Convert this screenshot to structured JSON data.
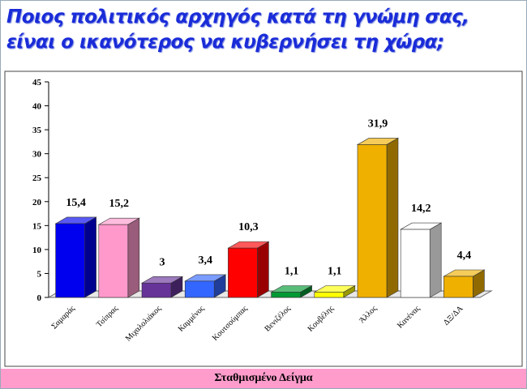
{
  "chart_data": {
    "type": "bar3d",
    "title": "Ποιος πολιτικός αρχηγός κατά τη γνώμη σας, είναι ο ικανότερος να κυβερνήσει τη χώρα;",
    "categories": [
      "Σαμαράς",
      "Τσίπρας",
      "Μιχαλολιάκος",
      "Καμμένος",
      "Κουτσούμπας",
      "Βενιζέλος",
      "Κουβέλης",
      "Άλλος",
      "Κανένας",
      "ΔΞ/ΔΑ"
    ],
    "values": [
      15.4,
      15.2,
      3,
      3.4,
      10.3,
      1.1,
      1.1,
      31.9,
      14.2,
      4.4
    ],
    "value_labels": [
      "15,4",
      "15,2",
      "3",
      "3,4",
      "10,3",
      "1,1",
      "1,1",
      "31,9",
      "14,2",
      "4,4"
    ],
    "colors": [
      "#0000ee",
      "#ff99cc",
      "#663399",
      "#3366ff",
      "#ff0000",
      "#009933",
      "#ffff00",
      "#f0b000",
      "#ffffff",
      "#f0b000"
    ],
    "ylim": [
      0,
      45
    ],
    "yticks": [
      0,
      5,
      10,
      15,
      20,
      25,
      30,
      35,
      40,
      45
    ],
    "footer": "Σταθμισμένο Δείγμα"
  }
}
